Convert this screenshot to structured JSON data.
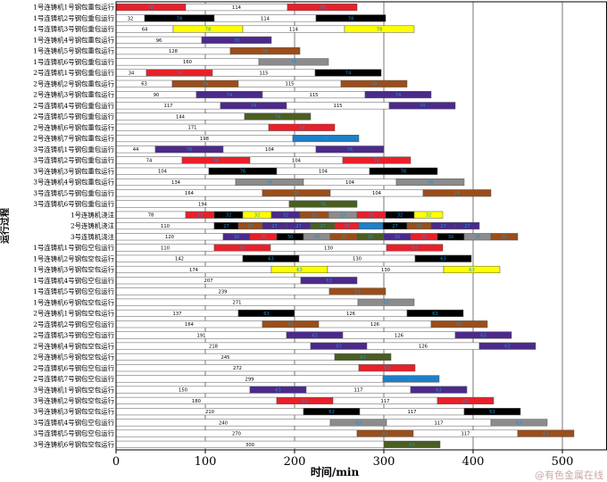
{
  "chart_data": {
    "type": "gantt",
    "xlabel": "时间/min",
    "ylabel": "运行过程",
    "xlim": [
      0,
      550
    ],
    "xticks": [
      0,
      100,
      200,
      300,
      400,
      500
    ],
    "grid_x": [
      100,
      200,
      300,
      400,
      500
    ],
    "colors": {
      "ladle1": "#e8202a",
      "ladle2": "#000000",
      "ladle3": "#ffff00",
      "ladle4": "#4b2a8a",
      "ladle5": "#9b4e1a",
      "ladle6": "#8c8c8c",
      "ladle7": "#1e7fc8",
      "green": "#4b5e22",
      "empty": "#ffffff"
    },
    "rows": [
      {
        "label": "1号连铸机1号钢包重包运行",
        "segs": [
          [
            0,
            78,
            "ladle1",
            "78"
          ],
          [
            78,
            192,
            "empty",
            "114"
          ],
          [
            192,
            270,
            "ladle1",
            "78"
          ]
        ]
      },
      {
        "label": "1号连铸机2号钢包重包运行",
        "segs": [
          [
            0,
            32,
            "empty",
            "32"
          ],
          [
            32,
            110,
            "ladle2",
            "78"
          ],
          [
            110,
            224,
            "empty",
            "114"
          ],
          [
            224,
            302,
            "ladle2",
            "78"
          ]
        ]
      },
      {
        "label": "1号连铸机3号钢包重包运行",
        "segs": [
          [
            0,
            64,
            "empty",
            "64"
          ],
          [
            64,
            142,
            "ladle3",
            "78"
          ],
          [
            142,
            256,
            "empty",
            "114"
          ],
          [
            256,
            334,
            "ladle3",
            "78"
          ]
        ]
      },
      {
        "label": "1号连铸机4号钢包重包运行",
        "segs": [
          [
            0,
            96,
            "empty",
            "96"
          ],
          [
            96,
            174,
            "ladle4",
            "78"
          ]
        ]
      },
      {
        "label": "1号连铸机5号钢包重包运行",
        "segs": [
          [
            0,
            128,
            "empty",
            "128"
          ],
          [
            128,
            206,
            "ladle5",
            "78"
          ]
        ]
      },
      {
        "label": "1号连铸机6号钢包重包运行",
        "segs": [
          [
            0,
            160,
            "empty",
            "160"
          ],
          [
            160,
            238,
            "ladle6",
            "78"
          ]
        ]
      },
      {
        "label": "2号连铸机1号钢包重包运行",
        "segs": [
          [
            0,
            34,
            "empty",
            "34"
          ],
          [
            34,
            108,
            "ladle1",
            "74"
          ],
          [
            108,
            223,
            "empty",
            "115"
          ],
          [
            223,
            297,
            "ladle2",
            "74"
          ]
        ]
      },
      {
        "label": "2号连铸机2号钢包重包运行",
        "segs": [
          [
            0,
            63,
            "empty",
            "63"
          ],
          [
            63,
            137,
            "ladle5",
            "74"
          ],
          [
            137,
            252,
            "empty",
            "115"
          ],
          [
            252,
            326,
            "ladle5",
            "74"
          ]
        ]
      },
      {
        "label": "2号连铸机3号钢包重包运行",
        "segs": [
          [
            0,
            90,
            "empty",
            "90"
          ],
          [
            90,
            164,
            "ladle4",
            "74"
          ],
          [
            164,
            279,
            "empty",
            "115"
          ],
          [
            279,
            353,
            "ladle4",
            "74"
          ]
        ]
      },
      {
        "label": "2号连铸机4号钢包重包运行",
        "segs": [
          [
            0,
            117,
            "empty",
            "117"
          ],
          [
            117,
            191,
            "ladle4",
            "74"
          ],
          [
            191,
            306,
            "empty",
            "115"
          ],
          [
            306,
            380,
            "ladle4",
            "74"
          ]
        ]
      },
      {
        "label": "2号连铸机5号钢包重包运行",
        "segs": [
          [
            0,
            144,
            "empty",
            "144"
          ],
          [
            144,
            218,
            "green",
            "74"
          ]
        ]
      },
      {
        "label": "2号连铸机6号钢包重包运行",
        "segs": [
          [
            0,
            171,
            "empty",
            "171"
          ],
          [
            171,
            245,
            "ladle1",
            "74"
          ]
        ]
      },
      {
        "label": "2号连铸机7号钢包重包运行",
        "segs": [
          [
            0,
            198,
            "empty",
            "198"
          ],
          [
            198,
            272,
            "ladle7",
            "74"
          ]
        ]
      },
      {
        "label": "3号连铸机1号钢包重包运行",
        "segs": [
          [
            0,
            44,
            "empty",
            "44"
          ],
          [
            44,
            120,
            "ladle4",
            "76"
          ],
          [
            120,
            224,
            "empty",
            "104"
          ],
          [
            224,
            300,
            "ladle4",
            "76"
          ]
        ]
      },
      {
        "label": "3号连铸机2号钢包重包运行",
        "segs": [
          [
            0,
            74,
            "empty",
            "74"
          ],
          [
            74,
            150,
            "ladle1",
            "76"
          ],
          [
            150,
            254,
            "empty",
            "104"
          ],
          [
            254,
            330,
            "ladle1",
            "76"
          ]
        ]
      },
      {
        "label": "3号连铸机3号钢包重包运行",
        "segs": [
          [
            0,
            104,
            "empty",
            "104"
          ],
          [
            104,
            180,
            "ladle2",
            "76"
          ],
          [
            180,
            284,
            "empty",
            "104"
          ],
          [
            284,
            360,
            "ladle2",
            "76"
          ]
        ]
      },
      {
        "label": "3号连铸机4号钢包重包运行",
        "segs": [
          [
            0,
            134,
            "empty",
            "134"
          ],
          [
            134,
            210,
            "ladle6",
            "76"
          ],
          [
            210,
            314,
            "empty",
            "104"
          ],
          [
            314,
            390,
            "ladle6",
            "76"
          ]
        ]
      },
      {
        "label": "3号连铸机5号钢包重包运行",
        "segs": [
          [
            0,
            164,
            "empty",
            "164"
          ],
          [
            164,
            240,
            "ladle5",
            "76"
          ],
          [
            240,
            344,
            "empty",
            "104"
          ],
          [
            344,
            420,
            "ladle5",
            "76"
          ]
        ]
      },
      {
        "label": "3号连铸机6号钢包重包运行",
        "segs": [
          [
            0,
            194,
            "empty",
            "194"
          ],
          [
            194,
            270,
            "green",
            "76"
          ]
        ]
      },
      {
        "label": "1号连铸机浇注",
        "segs": [
          [
            0,
            78,
            "empty",
            "78"
          ],
          [
            78,
            110,
            "ladle1",
            "32"
          ],
          [
            110,
            142,
            "ladle2",
            "32"
          ],
          [
            142,
            174,
            "ladle3",
            "32"
          ],
          [
            174,
            206,
            "ladle4",
            "32"
          ],
          [
            206,
            238,
            "ladle5",
            "32"
          ],
          [
            238,
            270,
            "ladle6",
            "32"
          ],
          [
            270,
            302,
            "ladle1",
            "32"
          ],
          [
            302,
            334,
            "ladle2",
            "32"
          ],
          [
            334,
            366,
            "ladle3",
            "32"
          ]
        ]
      },
      {
        "label": "2号连铸机浇注",
        "segs": [
          [
            0,
            110,
            "empty",
            "110"
          ],
          [
            110,
            137,
            "ladle2",
            "27"
          ],
          [
            137,
            164,
            "ladle5",
            "27"
          ],
          [
            164,
            191,
            "ladle4",
            "27"
          ],
          [
            191,
            218,
            "ladle4",
            "27"
          ],
          [
            218,
            245,
            "green",
            "27"
          ],
          [
            245,
            272,
            "ladle1",
            "27"
          ],
          [
            272,
            299,
            "ladle7",
            "27"
          ],
          [
            299,
            326,
            "ladle2",
            "27"
          ],
          [
            326,
            353,
            "ladle5",
            "27"
          ],
          [
            353,
            380,
            "ladle4",
            "27"
          ],
          [
            380,
            407,
            "ladle4",
            "27"
          ]
        ]
      },
      {
        "label": "3号连铸机浇注",
        "segs": [
          [
            0,
            120,
            "empty",
            "120"
          ],
          [
            120,
            150,
            "ladle4",
            "30"
          ],
          [
            150,
            180,
            "ladle1",
            "30"
          ],
          [
            180,
            210,
            "ladle2",
            "30"
          ],
          [
            210,
            240,
            "ladle6",
            "30"
          ],
          [
            240,
            270,
            "ladle5",
            "30"
          ],
          [
            270,
            300,
            "green",
            "30"
          ],
          [
            300,
            330,
            "ladle4",
            "30"
          ],
          [
            330,
            360,
            "ladle1",
            "30"
          ],
          [
            360,
            390,
            "ladle2",
            "30"
          ],
          [
            390,
            420,
            "ladle6",
            "30"
          ],
          [
            420,
            450,
            "ladle5",
            "30"
          ]
        ]
      },
      {
        "label": "1号连铸机1号钢包空包运行",
        "segs": [
          [
            0,
            110,
            "empty",
            "110"
          ],
          [
            110,
            173,
            "ladle1",
            "63"
          ],
          [
            173,
            303,
            "empty",
            "130"
          ],
          [
            303,
            366,
            "ladle1",
            "63"
          ]
        ]
      },
      {
        "label": "1号连铸机2号钢包空包运行",
        "segs": [
          [
            0,
            142,
            "empty",
            "142"
          ],
          [
            142,
            205,
            "ladle2",
            "63"
          ],
          [
            205,
            335,
            "empty",
            "130"
          ],
          [
            335,
            398,
            "ladle2",
            "63"
          ]
        ]
      },
      {
        "label": "1号连铸机3号钢包空包运行",
        "segs": [
          [
            0,
            174,
            "empty",
            "174"
          ],
          [
            174,
            237,
            "ladle3",
            "63"
          ],
          [
            237,
            367,
            "empty",
            "130"
          ],
          [
            367,
            430,
            "ladle3",
            "63"
          ]
        ]
      },
      {
        "label": "1号连铸机4号钢包空包运行",
        "segs": [
          [
            0,
            207,
            "empty",
            "207"
          ],
          [
            207,
            270,
            "ladle4",
            "63"
          ]
        ]
      },
      {
        "label": "1号连铸机5号钢包空包运行",
        "segs": [
          [
            0,
            239,
            "empty",
            "239"
          ],
          [
            239,
            302,
            "ladle5",
            "63"
          ]
        ]
      },
      {
        "label": "1号连铸机6号钢包空包运行",
        "segs": [
          [
            0,
            271,
            "empty",
            "271"
          ],
          [
            271,
            334,
            "ladle6",
            "63"
          ]
        ]
      },
      {
        "label": "2号连铸机1号钢包空包运行",
        "segs": [
          [
            0,
            137,
            "empty",
            "137"
          ],
          [
            137,
            200,
            "ladle2",
            "63"
          ],
          [
            200,
            326,
            "empty",
            "126"
          ],
          [
            326,
            389,
            "ladle2",
            "63"
          ]
        ]
      },
      {
        "label": "2号连铸机2号钢包空包运行",
        "segs": [
          [
            0,
            164,
            "empty",
            "164"
          ],
          [
            164,
            227,
            "ladle5",
            "63"
          ],
          [
            227,
            353,
            "empty",
            "126"
          ],
          [
            353,
            416,
            "ladle5",
            "63"
          ]
        ]
      },
      {
        "label": "2号连铸机3号钢包空包运行",
        "segs": [
          [
            0,
            191,
            "empty",
            "191"
          ],
          [
            191,
            254,
            "ladle4",
            "63"
          ],
          [
            254,
            380,
            "empty",
            "126"
          ],
          [
            380,
            443,
            "ladle4",
            "63"
          ]
        ]
      },
      {
        "label": "2号连铸机4号钢包空包运行",
        "segs": [
          [
            0,
            218,
            "empty",
            "218"
          ],
          [
            218,
            281,
            "ladle4",
            "63"
          ],
          [
            281,
            407,
            "empty",
            "126"
          ],
          [
            407,
            470,
            "ladle4",
            "63"
          ]
        ]
      },
      {
        "label": "2号连铸机5号钢包空包运行",
        "segs": [
          [
            0,
            245,
            "empty",
            "245"
          ],
          [
            245,
            308,
            "green",
            "63"
          ]
        ]
      },
      {
        "label": "2号连铸机6号钢包空包运行",
        "segs": [
          [
            0,
            272,
            "empty",
            "272"
          ],
          [
            272,
            335,
            "ladle1",
            "63"
          ]
        ]
      },
      {
        "label": "2号连铸机7号钢包空包运行",
        "segs": [
          [
            0,
            299,
            "empty",
            "299"
          ],
          [
            299,
            362,
            "ladle7",
            "63"
          ]
        ]
      },
      {
        "label": "3号连铸机1号钢包空包运行",
        "segs": [
          [
            0,
            150,
            "empty",
            "150"
          ],
          [
            150,
            213,
            "ladle4",
            "63"
          ],
          [
            213,
            330,
            "empty",
            "117"
          ],
          [
            330,
            393,
            "ladle4",
            "63"
          ]
        ]
      },
      {
        "label": "3号连铸机2号钢包空包运行",
        "segs": [
          [
            0,
            180,
            "empty",
            "180"
          ],
          [
            180,
            243,
            "ladle1",
            "63"
          ],
          [
            243,
            360,
            "empty",
            "117"
          ],
          [
            360,
            423,
            "ladle1",
            "63"
          ]
        ]
      },
      {
        "label": "3号连铸机3号钢包空包运行",
        "segs": [
          [
            0,
            210,
            "empty",
            "210"
          ],
          [
            210,
            273,
            "ladle2",
            "63"
          ],
          [
            273,
            390,
            "empty",
            "117"
          ],
          [
            390,
            453,
            "ladle2",
            "63"
          ]
        ]
      },
      {
        "label": "3号连铸机4号钢包空包运行",
        "segs": [
          [
            0,
            240,
            "empty",
            "240"
          ],
          [
            240,
            303,
            "ladle6",
            "63"
          ],
          [
            303,
            420,
            "empty",
            "117"
          ],
          [
            420,
            483,
            "ladle6",
            "63"
          ]
        ]
      },
      {
        "label": "3号连铸机5号钢包空包运行",
        "segs": [
          [
            0,
            270,
            "empty",
            "270"
          ],
          [
            270,
            333,
            "ladle5",
            "63"
          ],
          [
            333,
            450,
            "empty",
            "117"
          ],
          [
            450,
            513,
            "ladle5",
            "63"
          ]
        ]
      },
      {
        "label": "3号连铸机6号钢包空包运行",
        "segs": [
          [
            0,
            300,
            "empty",
            "300"
          ],
          [
            300,
            363,
            "green",
            "63"
          ]
        ]
      }
    ]
  },
  "watermark": "@有色金属在线"
}
